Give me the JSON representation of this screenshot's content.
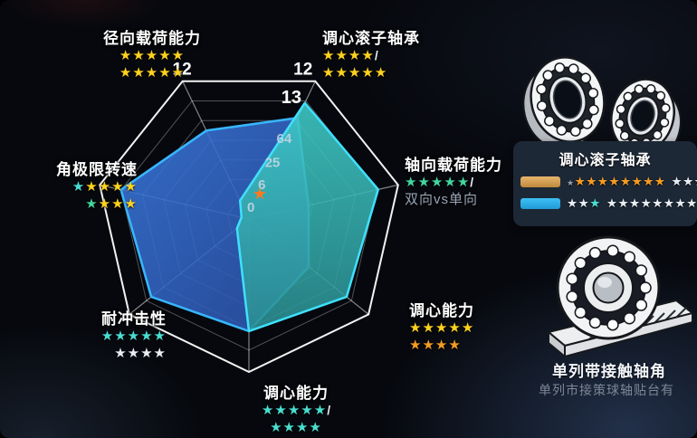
{
  "chart_data": {
    "type": "radar",
    "title": "",
    "max": 12,
    "grid": true,
    "legend_position": "right",
    "axes": [
      {
        "label": "径向载荷能力",
        "rows": [
          [
            "y",
            "y",
            "y",
            "y",
            "y"
          ],
          [
            "y",
            "y",
            "y",
            "y",
            "y"
          ]
        ]
      },
      {
        "label": "调心滚子轴承",
        "rows": [
          [
            "y",
            "y",
            "y",
            "y",
            "slash"
          ],
          [
            "y",
            "y",
            "y",
            "y",
            "y"
          ]
        ]
      },
      {
        "label": "轴向载荷能力",
        "rows": [
          [
            "g",
            "g",
            "g",
            "g",
            "g",
            "slash"
          ]
        ],
        "subtext": "双向vs单向"
      },
      {
        "label": "调心能力",
        "rows": [
          [
            "y",
            "y",
            "y",
            "y",
            "y"
          ],
          [
            "o",
            "o",
            "o",
            "o"
          ]
        ]
      },
      {
        "label": "调心能力",
        "rows": [
          [
            "c",
            "c",
            "c",
            "c",
            "c",
            "slash"
          ],
          [
            "c",
            "c",
            "c",
            "c"
          ]
        ]
      },
      {
        "label": "耐冲击性",
        "rows": [
          [
            "c",
            "c",
            "c",
            "c",
            "c"
          ],
          [
            "w",
            "w",
            "w",
            "w"
          ]
        ]
      },
      {
        "label": "角极限转速",
        "rows": [
          [
            "c",
            "y",
            "y",
            "y",
            "y"
          ],
          [
            "g",
            "y",
            "y",
            "y"
          ]
        ]
      }
    ],
    "series": [
      {
        "name": "blue",
        "values": [
          7.7,
          8.8,
          4.8,
          6.0,
          8.8,
          9.8,
          10.3
        ]
      },
      {
        "name": "teal",
        "values": [
          1.6,
          10.1,
          10.4,
          9.8,
          8.8,
          1.2,
          0.6
        ]
      }
    ],
    "vertex_label_left": "12",
    "vertex_label_right": "12",
    "peak_label": "13",
    "ticks": [
      "0",
      "6",
      "25",
      "64"
    ],
    "marker": {
      "symbol": "star",
      "color": "#ff7a1a"
    }
  },
  "panel": {
    "legend_title": "调心滚子轴承",
    "legend_rows": [
      {
        "swatch": "orange",
        "stars": [
          "dim",
          "o",
          "o",
          "o",
          "o",
          "o",
          "o",
          "o",
          "o",
          "gap",
          "w",
          "w",
          "w",
          "w"
        ]
      },
      {
        "swatch": "blue",
        "stars": [
          "w",
          "w",
          "c",
          "gap",
          "w",
          "w",
          "w",
          "w",
          "w",
          "w",
          "w",
          "w",
          "w"
        ]
      }
    ],
    "bearing_title": "单列带接触轴角",
    "bearing_caption": "单列市接策球轴贴台有"
  },
  "colors": {
    "background": "#06080d",
    "series_blue_fill": "#2d5fc0",
    "series_blue_stroke": "#38b6ff",
    "series_teal_fill": "#2fa9a2",
    "series_teal_stroke": "#3fe0ff",
    "star_yellow": "#ffd21e",
    "star_orange": "#f59b23",
    "star_green": "#43d69d",
    "star_cyan": "#49ded0",
    "star_white": "#e8edf4",
    "marker_orange": "#ff7a1a",
    "legend_swatch_orange": "#d9a257",
    "legend_swatch_blue": "#29a9e6",
    "legend_card": "#1d2836"
  }
}
